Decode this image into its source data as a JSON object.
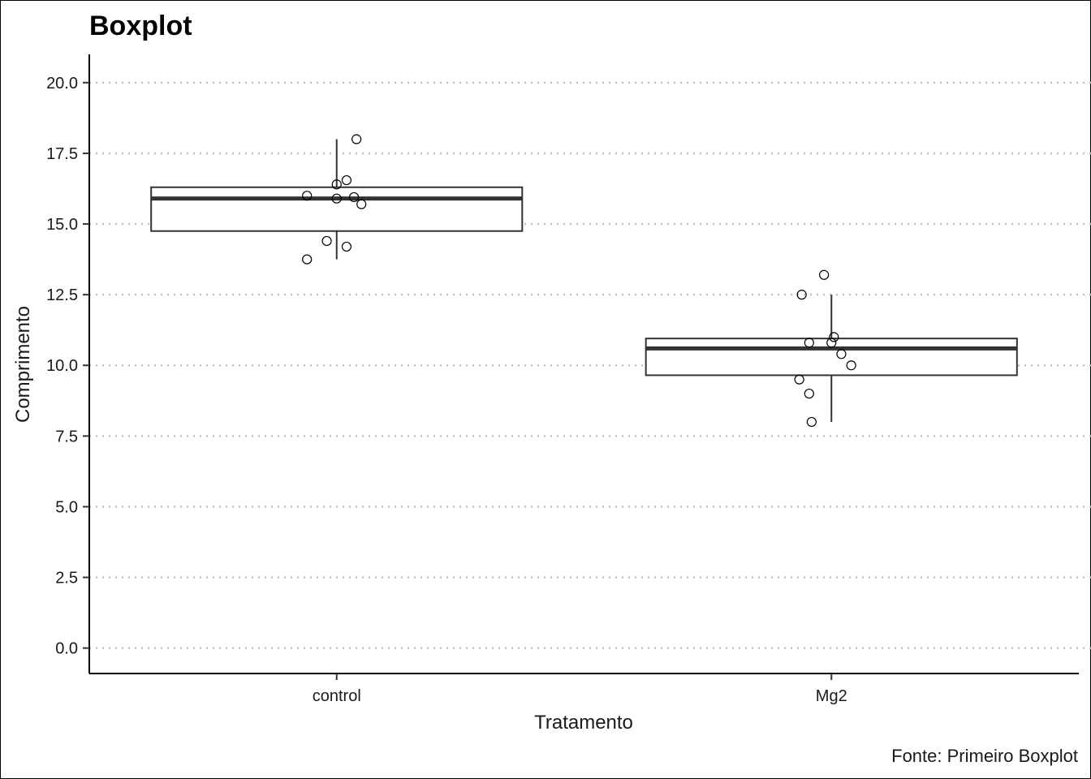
{
  "chart_data": {
    "type": "boxplot",
    "title": "Boxplot",
    "xlabel": "Tratamento",
    "ylabel": "Comprimento",
    "caption": "Fonte: Primeiro Boxplot",
    "categories": [
      "control",
      "Mg2"
    ],
    "ylim": [
      -0.9,
      21.0
    ],
    "yticks": [
      0.0,
      2.5,
      5.0,
      7.5,
      10.0,
      12.5,
      15.0,
      17.5,
      20.0
    ],
    "ytick_labels": [
      "0.0",
      "2.5",
      "5.0",
      "7.5",
      "10.0",
      "12.5",
      "15.0",
      "17.5",
      "20.0"
    ],
    "grid": "horizontal dotted",
    "boxes": [
      {
        "category": "control",
        "min": 13.75,
        "q1": 14.75,
        "median": 15.9,
        "q3": 16.3,
        "max": 18.0
      },
      {
        "category": "Mg2",
        "min": 8.0,
        "q1": 9.65,
        "median": 10.6,
        "q3": 10.95,
        "max": 12.5
      }
    ],
    "points": [
      {
        "category": "control",
        "jitter": 0.0,
        "y": 16.4
      },
      {
        "category": "control",
        "jitter": 0.02,
        "y": 16.55
      },
      {
        "category": "control",
        "jitter": 0.04,
        "y": 18.0
      },
      {
        "category": "control",
        "jitter": -0.06,
        "y": 16.0
      },
      {
        "category": "control",
        "jitter": 0.0,
        "y": 15.9
      },
      {
        "category": "control",
        "jitter": 0.035,
        "y": 15.95
      },
      {
        "category": "control",
        "jitter": 0.05,
        "y": 15.7
      },
      {
        "category": "control",
        "jitter": -0.02,
        "y": 14.4
      },
      {
        "category": "control",
        "jitter": 0.02,
        "y": 14.2
      },
      {
        "category": "control",
        "jitter": -0.06,
        "y": 13.75
      },
      {
        "category": "Mg2",
        "jitter": -0.015,
        "y": 13.2
      },
      {
        "category": "Mg2",
        "jitter": -0.06,
        "y": 12.5
      },
      {
        "category": "Mg2",
        "jitter": 0.005,
        "y": 11.0
      },
      {
        "category": "Mg2",
        "jitter": -0.045,
        "y": 10.8
      },
      {
        "category": "Mg2",
        "jitter": 0.0,
        "y": 10.8
      },
      {
        "category": "Mg2",
        "jitter": 0.02,
        "y": 10.4
      },
      {
        "category": "Mg2",
        "jitter": 0.04,
        "y": 10.0
      },
      {
        "category": "Mg2",
        "jitter": -0.065,
        "y": 9.5
      },
      {
        "category": "Mg2",
        "jitter": -0.045,
        "y": 9.0
      },
      {
        "category": "Mg2",
        "jitter": -0.04,
        "y": 8.0
      }
    ]
  }
}
